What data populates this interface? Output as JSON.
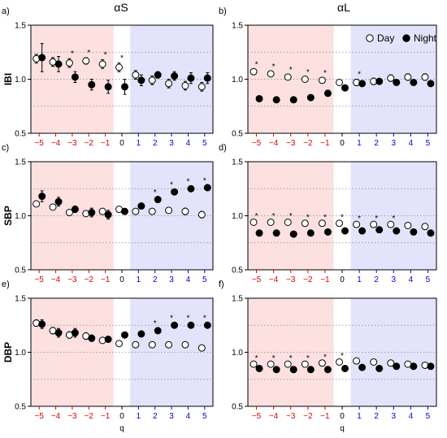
{
  "colors": {
    "neg_band": "#fde0e0",
    "pos_band": "#e3e3fb",
    "neg_tick": "#e00000",
    "pos_tick": "#0000dd",
    "zero_tick": "#000000"
  },
  "column_titles": [
    "αS",
    "αL"
  ],
  "row_labels": [
    "IBI",
    "SBP",
    "DBP"
  ],
  "panel_letters": [
    "a)",
    "b)",
    "c)",
    "d)",
    "e)",
    "f)"
  ],
  "xlabel": "q",
  "legend": {
    "day": "Day",
    "night": "Night"
  },
  "chart_data": [
    {
      "type": "scatter",
      "panel": "a)",
      "ylim": [
        0.5,
        1.5
      ],
      "y_ticks": [
        "0.5",
        "1.0",
        "1.5"
      ],
      "x": [
        -5,
        -4,
        -3,
        -2,
        -1,
        0,
        1,
        2,
        3,
        4,
        5
      ],
      "series": [
        {
          "name": "Day",
          "values": [
            1.19,
            1.16,
            1.15,
            1.17,
            1.14,
            1.11,
            1.04,
            0.99,
            0.96,
            0.94,
            0.93
          ],
          "err": [
            0.04,
            0.04,
            0.04,
            0.03,
            0.04,
            0.04,
            0.04,
            0.04,
            0.04,
            0.04,
            0.04
          ]
        },
        {
          "name": "Night",
          "values": [
            1.2,
            1.14,
            1.02,
            0.95,
            0.93,
            0.93,
            0.99,
            1.04,
            1.03,
            1.01,
            1.01
          ],
          "err": [
            0.13,
            0.07,
            0.05,
            0.05,
            0.06,
            0.07,
            0.05,
            0.03,
            0.04,
            0.05,
            0.05
          ]
        }
      ],
      "significant": [
        -3,
        -2,
        -1,
        0
      ]
    },
    {
      "type": "scatter",
      "panel": "b)",
      "ylim": [
        0.5,
        1.5
      ],
      "y_ticks": [
        "0.5",
        "1.0",
        "1.5"
      ],
      "x": [
        -5,
        -4,
        -3,
        -2,
        -1,
        0,
        1,
        2,
        3,
        4,
        5
      ],
      "series": [
        {
          "name": "Day",
          "values": [
            1.07,
            1.05,
            1.02,
            1.0,
            0.99,
            0.97,
            0.97,
            0.98,
            1.01,
            1.02,
            1.02
          ],
          "err": [
            0.02,
            0.02,
            0.02,
            0.02,
            0.02,
            0.02,
            0.03,
            0.03,
            0.03,
            0.03,
            0.03
          ]
        },
        {
          "name": "Night",
          "values": [
            0.82,
            0.81,
            0.81,
            0.83,
            0.87,
            0.92,
            0.96,
            0.98,
            0.97,
            0.97,
            0.96
          ],
          "err": [
            0.02,
            0.02,
            0.02,
            0.01,
            0.02,
            0.02,
            0.02,
            0.02,
            0.02,
            0.02,
            0.02
          ]
        }
      ],
      "significant": [
        -5,
        -4,
        -3,
        -2,
        -1,
        1
      ]
    },
    {
      "type": "scatter",
      "panel": "c)",
      "ylim": [
        0.5,
        1.5
      ],
      "y_ticks": [
        "0.5",
        "1.0",
        "1.5"
      ],
      "x": [
        -5,
        -4,
        -3,
        -2,
        -1,
        0,
        1,
        2,
        3,
        4,
        5
      ],
      "series": [
        {
          "name": "Day",
          "values": [
            1.11,
            1.08,
            1.03,
            1.02,
            1.04,
            1.06,
            1.04,
            1.04,
            1.05,
            1.04,
            1.01
          ],
          "err": [
            0.02,
            0.02,
            0.02,
            0.02,
            0.02,
            0.02,
            0.02,
            0.02,
            0.02,
            0.03,
            0.03
          ]
        },
        {
          "name": "Night",
          "values": [
            1.18,
            1.13,
            1.06,
            1.03,
            1.01,
            1.04,
            1.09,
            1.15,
            1.22,
            1.25,
            1.26
          ],
          "err": [
            0.05,
            0.04,
            0.03,
            0.04,
            0.04,
            0.02,
            0.02,
            0.02,
            0.02,
            0.02,
            0.02
          ]
        }
      ],
      "significant": [
        2,
        3,
        4,
        5
      ]
    },
    {
      "type": "scatter",
      "panel": "d)",
      "ylim": [
        0.5,
        1.5
      ],
      "y_ticks": [
        "0.5",
        "1.0",
        "1.5"
      ],
      "x": [
        -5,
        -4,
        -3,
        -2,
        -1,
        0,
        1,
        2,
        3,
        4,
        5
      ],
      "series": [
        {
          "name": "Day",
          "values": [
            0.94,
            0.94,
            0.94,
            0.93,
            0.93,
            0.93,
            0.92,
            0.92,
            0.92,
            0.91,
            0.9
          ],
          "err": [
            0.01,
            0.01,
            0.01,
            0.01,
            0.01,
            0.01,
            0.01,
            0.01,
            0.01,
            0.01,
            0.01
          ]
        },
        {
          "name": "Night",
          "values": [
            0.84,
            0.84,
            0.83,
            0.84,
            0.85,
            0.86,
            0.86,
            0.87,
            0.86,
            0.85,
            0.84
          ],
          "err": [
            0.02,
            0.02,
            0.02,
            0.02,
            0.02,
            0.02,
            0.02,
            0.02,
            0.02,
            0.02,
            0.02
          ]
        }
      ],
      "significant": [
        -5,
        -4,
        -3,
        -2,
        -1,
        0,
        1,
        2,
        3
      ]
    },
    {
      "type": "scatter",
      "panel": "e)",
      "ylim": [
        0.5,
        1.5
      ],
      "y_ticks": [
        "0.5",
        "1.0",
        "1.5"
      ],
      "x": [
        -5,
        -4,
        -3,
        -2,
        -1,
        0,
        1,
        2,
        3,
        4,
        5
      ],
      "series": [
        {
          "name": "Day",
          "values": [
            1.27,
            1.2,
            1.16,
            1.15,
            1.11,
            1.08,
            1.07,
            1.07,
            1.07,
            1.07,
            1.04
          ],
          "err": [
            0.03,
            0.03,
            0.03,
            0.03,
            0.02,
            0.02,
            0.02,
            0.02,
            0.02,
            0.02,
            0.02
          ]
        },
        {
          "name": "Night",
          "values": [
            1.26,
            1.18,
            1.18,
            1.13,
            1.12,
            1.16,
            1.17,
            1.2,
            1.25,
            1.25,
            1.25
          ],
          "err": [
            0.04,
            0.04,
            0.04,
            0.03,
            0.02,
            0.02,
            0.02,
            0.02,
            0.02,
            0.02,
            0.02
          ]
        }
      ],
      "significant": [
        2,
        3,
        4,
        5
      ]
    },
    {
      "type": "scatter",
      "panel": "f)",
      "ylim": [
        0.5,
        1.5
      ],
      "y_ticks": [
        "0.5",
        "1.0",
        "1.5"
      ],
      "x": [
        -5,
        -4,
        -3,
        -2,
        -1,
        0,
        1,
        2,
        3,
        4,
        5
      ],
      "series": [
        {
          "name": "Day",
          "values": [
            0.89,
            0.89,
            0.89,
            0.89,
            0.9,
            0.91,
            0.92,
            0.91,
            0.9,
            0.89,
            0.88
          ],
          "err": [
            0.01,
            0.01,
            0.01,
            0.01,
            0.01,
            0.01,
            0.01,
            0.01,
            0.01,
            0.01,
            0.01
          ]
        },
        {
          "name": "Night",
          "values": [
            0.85,
            0.84,
            0.84,
            0.84,
            0.84,
            0.85,
            0.86,
            0.85,
            0.87,
            0.87,
            0.87
          ],
          "err": [
            0.02,
            0.02,
            0.02,
            0.02,
            0.02,
            0.02,
            0.02,
            0.02,
            0.02,
            0.02,
            0.02
          ]
        }
      ],
      "significant": [
        -5,
        -4,
        -3,
        -2,
        -1,
        0
      ]
    }
  ]
}
